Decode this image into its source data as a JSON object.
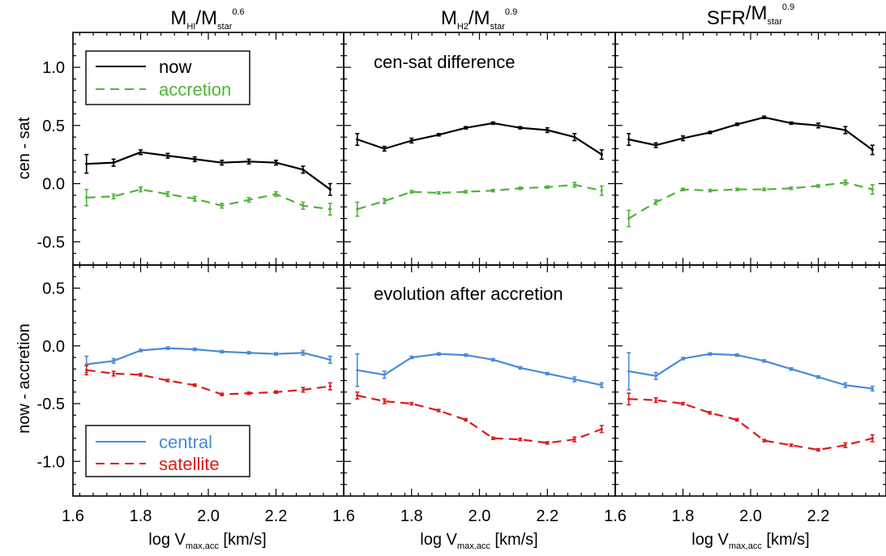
{
  "colors": {
    "now": "#000000",
    "accretion": "#4fb33a",
    "central": "#4a8ad8",
    "satellite": "#dd1a1a"
  },
  "columns": [
    {
      "main": "M",
      "sub1": "HI",
      "mid": "/M",
      "sub2": "star",
      "sup": "0.6"
    },
    {
      "main": "M",
      "sub1": "H2",
      "mid": "/M",
      "sub2": "star",
      "sup": "0.9"
    },
    {
      "main": "SFR",
      "sub1": "",
      "mid": "/M",
      "sub2": "star",
      "sup": "0.9"
    }
  ],
  "xlabel": {
    "main": "log V",
    "sub": "max,acc",
    "rest": " [km/s]"
  },
  "x_ticks": [
    "1.6",
    "1.8",
    "2.0",
    "2.2"
  ],
  "top_ylabel": "cen - sat",
  "bottom_ylabel": "now - accretion",
  "top_y_ticks": [
    "1.0",
    "0.5",
    "0.0",
    "-0.5"
  ],
  "bottom_y_ticks": [
    "0.5",
    "0.0",
    "-0.5",
    "-1.0"
  ],
  "top_legend": {
    "now": "now",
    "accretion": "accretion"
  },
  "bottom_legend": {
    "central": "central",
    "satellite": "satellite"
  },
  "annotations": {
    "top_mid": "cen-sat difference",
    "bottom_mid": "evolution after accretion"
  },
  "chart_data": [
    {
      "type": "line",
      "panel": "top-left",
      "xlim": [
        1.6,
        2.4
      ],
      "ylim": [
        -0.7,
        1.3
      ],
      "x": [
        1.64,
        1.72,
        1.8,
        1.88,
        1.96,
        2.04,
        2.12,
        2.2,
        2.28,
        2.36
      ],
      "series": [
        {
          "name": "now",
          "style": "solid",
          "values": [
            0.17,
            0.18,
            0.27,
            0.24,
            0.21,
            0.18,
            0.19,
            0.18,
            0.12,
            -0.05
          ],
          "errors": [
            0.08,
            0.03,
            0.02,
            0.02,
            0.02,
            0.02,
            0.02,
            0.02,
            0.03,
            0.05
          ]
        },
        {
          "name": "accretion",
          "style": "dashed",
          "values": [
            -0.12,
            -0.11,
            -0.05,
            -0.09,
            -0.13,
            -0.19,
            -0.14,
            -0.09,
            -0.19,
            -0.22
          ],
          "errors": [
            0.07,
            0.02,
            0.02,
            0.02,
            0.02,
            0.02,
            0.02,
            0.02,
            0.03,
            0.05
          ]
        }
      ]
    },
    {
      "type": "line",
      "panel": "top-middle",
      "xlim": [
        1.6,
        2.4
      ],
      "ylim": [
        -0.7,
        1.3
      ],
      "x": [
        1.64,
        1.72,
        1.8,
        1.88,
        1.96,
        2.04,
        2.12,
        2.2,
        2.28,
        2.36
      ],
      "series": [
        {
          "name": "now",
          "style": "solid",
          "values": [
            0.38,
            0.3,
            0.37,
            0.42,
            0.48,
            0.52,
            0.48,
            0.46,
            0.4,
            0.25
          ],
          "errors": [
            0.05,
            0.02,
            0.02,
            0.01,
            0.01,
            0.01,
            0.01,
            0.02,
            0.03,
            0.04
          ]
        },
        {
          "name": "accretion",
          "style": "dashed",
          "values": [
            -0.22,
            -0.15,
            -0.07,
            -0.08,
            -0.07,
            -0.06,
            -0.04,
            -0.03,
            -0.01,
            -0.06
          ],
          "errors": [
            0.06,
            0.02,
            0.01,
            0.01,
            0.01,
            0.01,
            0.01,
            0.01,
            0.02,
            0.04
          ]
        }
      ]
    },
    {
      "type": "line",
      "panel": "top-right",
      "xlim": [
        1.6,
        2.4
      ],
      "ylim": [
        -0.7,
        1.3
      ],
      "x": [
        1.64,
        1.72,
        1.8,
        1.88,
        1.96,
        2.04,
        2.12,
        2.2,
        2.28,
        2.36
      ],
      "series": [
        {
          "name": "now",
          "style": "solid",
          "values": [
            0.38,
            0.33,
            0.39,
            0.44,
            0.51,
            0.57,
            0.52,
            0.5,
            0.46,
            0.29
          ],
          "errors": [
            0.05,
            0.02,
            0.02,
            0.01,
            0.01,
            0.01,
            0.01,
            0.02,
            0.03,
            0.04
          ]
        },
        {
          "name": "accretion",
          "style": "dashed",
          "values": [
            -0.3,
            -0.16,
            -0.05,
            -0.06,
            -0.05,
            -0.05,
            -0.04,
            -0.02,
            0.01,
            -0.05
          ],
          "errors": [
            0.07,
            0.02,
            0.01,
            0.01,
            0.01,
            0.01,
            0.01,
            0.01,
            0.02,
            0.04
          ]
        }
      ]
    },
    {
      "type": "line",
      "panel": "bottom-left",
      "xlim": [
        1.6,
        2.4
      ],
      "ylim": [
        -1.3,
        0.7
      ],
      "x": [
        1.64,
        1.72,
        1.8,
        1.88,
        1.96,
        2.04,
        2.12,
        2.2,
        2.28,
        2.36
      ],
      "series": [
        {
          "name": "central",
          "style": "solid",
          "values": [
            -0.16,
            -0.13,
            -0.04,
            -0.02,
            -0.03,
            -0.05,
            -0.06,
            -0.07,
            -0.06,
            -0.12
          ],
          "errors": [
            0.07,
            0.02,
            0.01,
            0.01,
            0.01,
            0.01,
            0.01,
            0.01,
            0.02,
            0.03
          ]
        },
        {
          "name": "satellite",
          "style": "dashed",
          "values": [
            -0.21,
            -0.24,
            -0.25,
            -0.3,
            -0.34,
            -0.42,
            -0.41,
            -0.4,
            -0.38,
            -0.35
          ],
          "errors": [
            0.04,
            0.02,
            0.01,
            0.01,
            0.01,
            0.01,
            0.01,
            0.01,
            0.02,
            0.03
          ]
        }
      ]
    },
    {
      "type": "line",
      "panel": "bottom-middle",
      "xlim": [
        1.6,
        2.4
      ],
      "ylim": [
        -1.3,
        0.7
      ],
      "x": [
        1.64,
        1.72,
        1.8,
        1.88,
        1.96,
        2.04,
        2.12,
        2.2,
        2.28,
        2.36
      ],
      "series": [
        {
          "name": "central",
          "style": "solid",
          "values": [
            -0.21,
            -0.25,
            -0.1,
            -0.07,
            -0.08,
            -0.12,
            -0.19,
            -0.24,
            -0.29,
            -0.34
          ],
          "errors": [
            0.14,
            0.03,
            0.01,
            0.01,
            0.01,
            0.01,
            0.01,
            0.01,
            0.02,
            0.02
          ]
        },
        {
          "name": "satellite",
          "style": "dashed",
          "values": [
            -0.43,
            -0.48,
            -0.5,
            -0.56,
            -0.64,
            -0.8,
            -0.81,
            -0.84,
            -0.81,
            -0.72
          ],
          "errors": [
            0.03,
            0.02,
            0.01,
            0.01,
            0.01,
            0.01,
            0.01,
            0.01,
            0.02,
            0.03
          ]
        }
      ]
    },
    {
      "type": "line",
      "panel": "bottom-right",
      "xlim": [
        1.6,
        2.4
      ],
      "ylim": [
        -1.3,
        0.7
      ],
      "x": [
        1.64,
        1.72,
        1.8,
        1.88,
        1.96,
        2.04,
        2.12,
        2.2,
        2.28,
        2.36
      ],
      "series": [
        {
          "name": "central",
          "style": "solid",
          "values": [
            -0.22,
            -0.26,
            -0.11,
            -0.07,
            -0.08,
            -0.13,
            -0.2,
            -0.27,
            -0.34,
            -0.37
          ],
          "errors": [
            0.16,
            0.03,
            0.01,
            0.01,
            0.01,
            0.01,
            0.01,
            0.01,
            0.02,
            0.02
          ]
        },
        {
          "name": "satellite",
          "style": "dashed",
          "values": [
            -0.46,
            -0.47,
            -0.5,
            -0.58,
            -0.64,
            -0.82,
            -0.86,
            -0.9,
            -0.86,
            -0.8
          ],
          "errors": [
            0.05,
            0.02,
            0.01,
            0.01,
            0.01,
            0.01,
            0.01,
            0.01,
            0.02,
            0.03
          ]
        }
      ]
    }
  ]
}
